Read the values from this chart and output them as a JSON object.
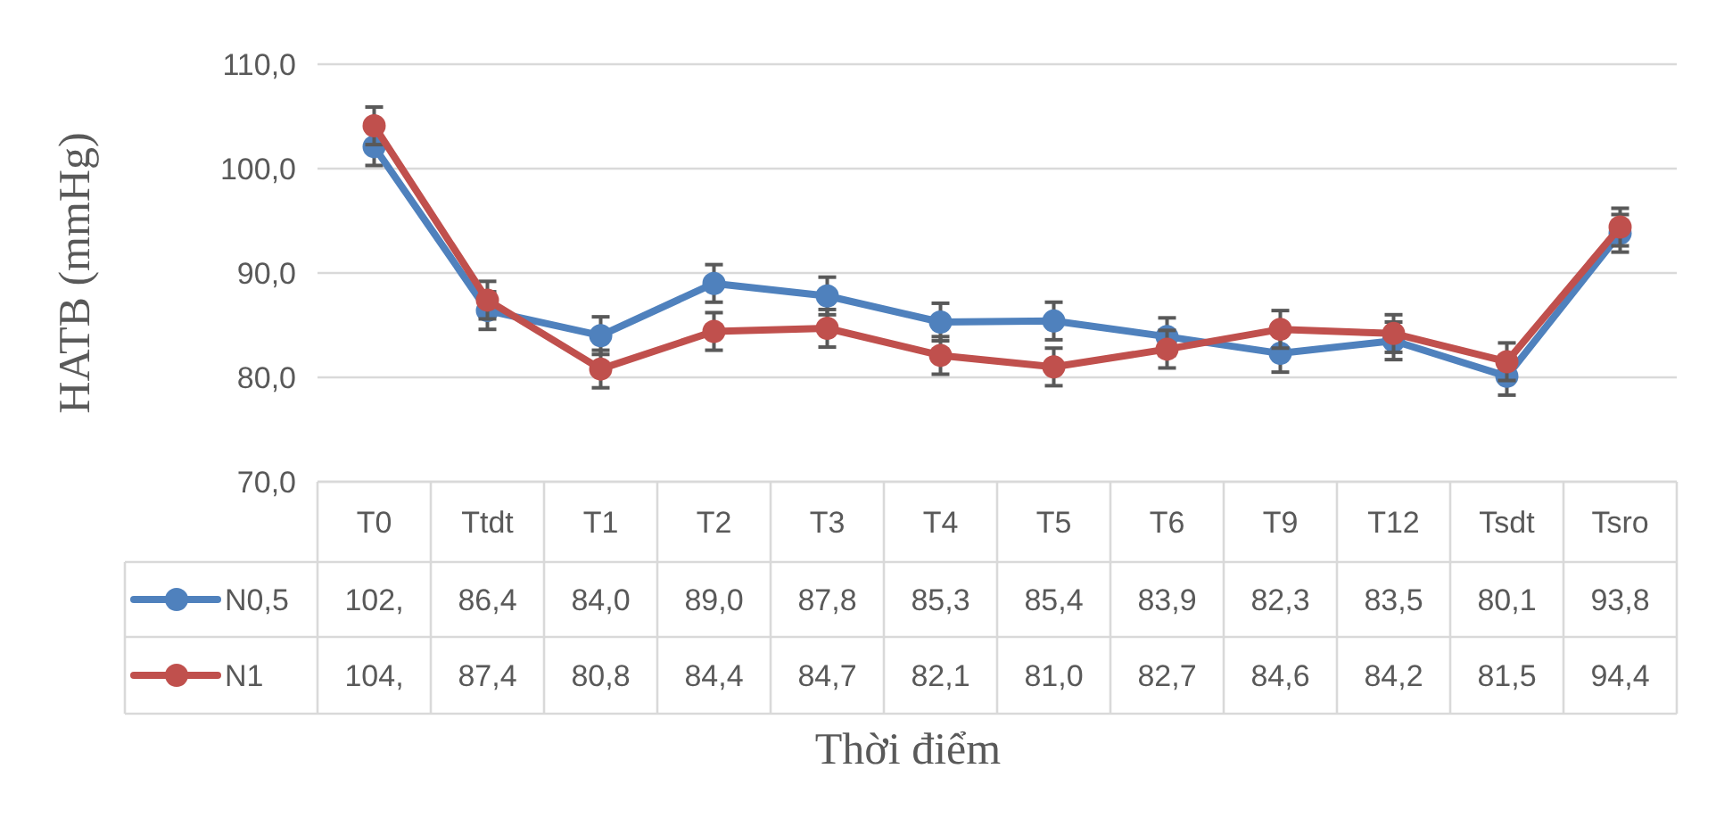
{
  "chart_data": {
    "type": "line",
    "xlabel": "Thời điểm",
    "ylabel": "HATB (mmHg)",
    "categories": [
      "T0",
      "Ttdt",
      "T1",
      "T2",
      "T3",
      "T4",
      "T5",
      "T6",
      "T9",
      "T12",
      "Tsdt",
      "Tsro"
    ],
    "ylim": [
      70,
      110
    ],
    "yticks": [
      {
        "value": 70,
        "label": "70,0"
      },
      {
        "value": 80,
        "label": "80,0"
      },
      {
        "value": 90,
        "label": "90,0"
      },
      {
        "value": 100,
        "label": "100,0"
      },
      {
        "value": 110,
        "label": "110,0"
      }
    ],
    "grid": "y",
    "legend": "bottom",
    "marker": "circle",
    "line_style": "solid",
    "series": [
      {
        "name": "N0,5",
        "color": "#4f81bd",
        "values": [
          102.1,
          86.4,
          84.0,
          89.0,
          87.8,
          85.3,
          85.4,
          83.9,
          82.3,
          83.5,
          80.1,
          93.8
        ],
        "errors": [
          1.8,
          1.8,
          1.8,
          1.8,
          1.8,
          1.8,
          1.8,
          1.8,
          1.8,
          1.8,
          1.8,
          1.8
        ],
        "value_labels": [
          "102,",
          "86,4",
          "84,0",
          "89,0",
          "87,8",
          "85,3",
          "85,4",
          "83,9",
          "82,3",
          "83,5",
          "80,1",
          "93,8"
        ]
      },
      {
        "name": "N1",
        "color": "#c0504d",
        "values": [
          104.1,
          87.4,
          80.8,
          84.4,
          84.7,
          82.1,
          81.0,
          82.7,
          84.6,
          84.2,
          81.5,
          94.4
        ],
        "errors": [
          1.8,
          1.8,
          1.8,
          1.8,
          1.8,
          1.8,
          1.8,
          1.8,
          1.8,
          1.8,
          1.8,
          1.8
        ],
        "value_labels": [
          "104,",
          "87,4",
          "80,8",
          "84,4",
          "84,7",
          "82,1",
          "81,0",
          "82,7",
          "84,6",
          "84,2",
          "81,5",
          "94,4"
        ]
      }
    ]
  }
}
